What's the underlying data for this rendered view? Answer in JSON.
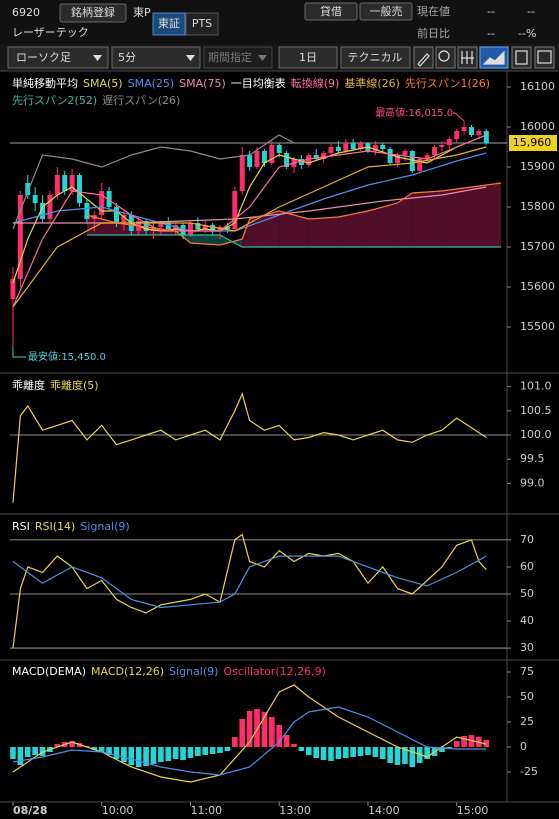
{
  "header": {
    "code": "6920",
    "watch_button": "銘柄登録",
    "market": "東P",
    "exchanges": [
      "東証",
      "PTS"
    ],
    "name": "レーザーテック",
    "buttons": [
      "貸借",
      "一般売"
    ],
    "price_label": "現在値",
    "price": "--",
    "price_extra": "--",
    "change_label": "前日比",
    "change": "--",
    "change_pct": "--%"
  },
  "toolbar": {
    "chart_style": "ローソク足",
    "interval": "5分",
    "period": "期間指定",
    "range": "1日",
    "technical": "テクニカル"
  },
  "chart_data": [
    {
      "type": "candlestick",
      "xlim": [
        -0.4,
        66.8
      ],
      "ylim": [
        15392.5,
        16130
      ],
      "yticks": [
        15500,
        15600,
        15700,
        15800,
        15900,
        16000,
        16100
      ],
      "up_color": "#ff2d6a",
      "down_color": "#23d5d5",
      "open": [
        15570,
        15620,
        15860,
        15830,
        15810,
        15770,
        15830,
        15880,
        15840,
        15880,
        15810,
        15770,
        15780,
        15840,
        15800,
        15760,
        15780,
        15740,
        15765,
        15740,
        15750,
        15760,
        15745,
        15755,
        15730,
        15760,
        15745,
        15755,
        15740,
        15750,
        15745,
        15840,
        15930,
        15900,
        15940,
        15910,
        15955,
        15935,
        15900,
        15920,
        15905,
        15930,
        15920,
        15935,
        15950,
        15940,
        15960,
        15945,
        15960,
        15940,
        15955,
        15945,
        15910,
        15930,
        15940,
        15890,
        15920,
        15930,
        15950,
        15955,
        15970,
        15990,
        16000,
        15980,
        15990
      ],
      "high": [
        15650,
        15840,
        15880,
        15850,
        15830,
        15840,
        15900,
        15890,
        15895,
        15885,
        15820,
        15790,
        15860,
        15850,
        15810,
        15790,
        15790,
        15775,
        15770,
        15760,
        15765,
        15775,
        15760,
        15760,
        15765,
        15775,
        15765,
        15760,
        15755,
        15760,
        15850,
        15950,
        15940,
        15950,
        15945,
        15965,
        15960,
        15940,
        15925,
        15930,
        15935,
        15945,
        15940,
        15960,
        15965,
        15970,
        15970,
        15965,
        15962,
        15965,
        15960,
        15950,
        15935,
        15945,
        15942,
        15925,
        15935,
        15955,
        15965,
        15975,
        15995,
        16015,
        16005,
        15995,
        15995
      ],
      "low": [
        15450,
        15600,
        15820,
        15790,
        15760,
        15760,
        15820,
        15830,
        15830,
        15800,
        15760,
        15740,
        15770,
        15790,
        15750,
        15740,
        15730,
        15730,
        15730,
        15720,
        15730,
        15740,
        15730,
        15720,
        15725,
        15740,
        15735,
        15730,
        15720,
        15735,
        15740,
        15830,
        15890,
        15895,
        15900,
        15905,
        15925,
        15895,
        15885,
        15895,
        15900,
        15915,
        15910,
        15925,
        15935,
        15935,
        15940,
        15940,
        15935,
        15930,
        15935,
        15905,
        15900,
        15915,
        15885,
        15885,
        15910,
        15920,
        15940,
        15945,
        15960,
        15980,
        15975,
        15970,
        15955
      ],
      "close": [
        15620,
        15830,
        15830,
        15810,
        15770,
        15830,
        15880,
        15840,
        15880,
        15810,
        15770,
        15780,
        15840,
        15800,
        15760,
        15780,
        15740,
        15765,
        15740,
        15750,
        15760,
        15745,
        15755,
        15730,
        15760,
        15745,
        15755,
        15740,
        15750,
        15745,
        15840,
        15930,
        15900,
        15940,
        15910,
        15955,
        15935,
        15900,
        15920,
        15905,
        15930,
        15920,
        15935,
        15950,
        15940,
        15960,
        15945,
        15960,
        15940,
        15955,
        15945,
        15910,
        15930,
        15940,
        15890,
        15920,
        15930,
        15950,
        15955,
        15970,
        15990,
        16000,
        15980,
        15990,
        15960
      ],
      "overlays": [
        {
          "label": "単純移動平均",
          "series": [
            {
              "name": "SMA(5)",
              "color": "#e8d44d",
              "x": [
                0,
                2,
                4,
                6,
                8,
                10,
                12,
                14,
                16,
                18,
                20,
                22,
                24,
                26,
                28,
                30,
                32,
                34,
                36,
                40,
                44,
                48,
                52,
                56,
                60,
                64
              ],
              "values": [
                15610,
                15720,
                15800,
                15830,
                15850,
                15820,
                15790,
                15790,
                15760,
                15745,
                15740,
                15745,
                15740,
                15745,
                15740,
                15760,
                15850,
                15910,
                15930,
                15910,
                15935,
                15950,
                15925,
                15910,
                15950,
                15980
              ]
            },
            {
              "name": "SMA(25)",
              "color": "#4f8fe8",
              "x": [
                0,
                6,
                12,
                18,
                24,
                30,
                36,
                42,
                48,
                54,
                60,
                64
              ],
              "values": [
                15760,
                15790,
                15800,
                15770,
                15740,
                15740,
                15780,
                15820,
                15855,
                15880,
                15915,
                15935
              ]
            },
            {
              "name": "SMA(75)",
              "color": "#f08cb0",
              "x": [
                0,
                16,
                30,
                40,
                50,
                58,
                64
              ],
              "values": [
                15760,
                15760,
                15770,
                15790,
                15815,
                15830,
                15850
              ]
            }
          ]
        },
        {
          "label": "一目均衡表",
          "series": [
            {
              "name": "転換線(9)",
              "color": "#ff6b9d",
              "x": [
                0,
                4,
                8,
                12,
                16,
                20,
                24,
                28,
                32,
                36,
                40,
                44,
                48,
                52,
                56,
                60,
                64
              ],
              "values": [
                15550,
                15720,
                15840,
                15830,
                15780,
                15740,
                15740,
                15740,
                15800,
                15900,
                15920,
                15930,
                15940,
                15930,
                15920,
                15950,
                15980
              ]
            },
            {
              "name": "基準線(26)",
              "color": "#e0b030",
              "x": [
                0,
                6,
                12,
                18,
                24,
                30,
                36,
                42,
                48,
                54,
                60,
                64
              ],
              "values": [
                15550,
                15700,
                15760,
                15760,
                15760,
                15740,
                15800,
                15850,
                15900,
                15910,
                15930,
                15950
              ]
            },
            {
              "name": "先行スパン1(26)",
              "color": "#ff7a30",
              "x": [
                10,
                14,
                18,
                22,
                24,
                28,
                31,
                32,
                36,
                40,
                44,
                48,
                52,
                54,
                58,
                62,
                66
              ],
              "values": [
                15780,
                15760,
                15750,
                15740,
                15710,
                15705,
                15720,
                15770,
                15790,
                15770,
                15775,
                15790,
                15810,
                15835,
                15840,
                15850,
                15860
              ]
            },
            {
              "name": "先行スパン2(52)",
              "color": "#3cb8a0",
              "x": [
                10,
                14,
                18,
                22,
                24,
                28,
                31,
                32,
                36,
                40,
                44,
                48,
                52,
                54,
                58,
                62,
                66
              ],
              "values": [
                15730,
                15730,
                15730,
                15730,
                15730,
                15730,
                15700,
                15700,
                15700,
                15700,
                15700,
                15700,
                15700,
                15700,
                15700,
                15700,
                15700
              ]
            },
            {
              "name": "遅行スパン(26)",
              "color": "#8a8a8a",
              "x": [
                0,
                4,
                8,
                12,
                16,
                20,
                24,
                28,
                32,
                36,
                38
              ],
              "values": [
                15745,
                15930,
                15920,
                15900,
                15930,
                15950,
                15940,
                15920,
                15930,
                15980,
                15960
              ]
            }
          ]
        }
      ],
      "cloud_colors": {
        "up": "#5e1030",
        "down": "#0e4a48"
      },
      "current_price": {
        "value": 15960,
        "label": "15,960"
      },
      "annotations": [
        {
          "text": "最高値:16,015.0",
          "x": 61,
          "y": 16015,
          "color": "#ff4d7a"
        },
        {
          "text": "最安値:15,450.0",
          "x": 0,
          "y": 15450,
          "color": "#4fd0e0"
        }
      ]
    },
    {
      "type": "line",
      "title": "乖離度",
      "xlim": [
        -0.4,
        66.8
      ],
      "ylim": [
        98.45,
        101.2
      ],
      "yticks": [
        {
          "value": 99,
          "label": "99.0"
        },
        99.5,
        {
          "value": 100,
          "label": "100.0"
        },
        100.5,
        {
          "value": 101,
          "label": "101.0"
        }
      ],
      "hlines": [
        100
      ],
      "series": [
        {
          "name": "乖離度(5)",
          "color": "#e8d44d",
          "x": [
            0,
            1,
            2,
            4,
            6,
            8,
            10,
            12,
            14,
            16,
            18,
            20,
            22,
            24,
            26,
            28,
            30,
            31,
            32,
            34,
            36,
            38,
            40,
            42,
            44,
            46,
            48,
            50,
            52,
            54,
            56,
            58,
            60,
            62,
            64
          ],
          "values": [
            98.6,
            100.4,
            100.6,
            100.1,
            100.2,
            100.3,
            99.9,
            100.2,
            99.8,
            99.9,
            100.0,
            100.1,
            99.9,
            100.0,
            100.1,
            99.9,
            100.5,
            100.85,
            100.3,
            100.1,
            100.2,
            99.9,
            99.95,
            100.05,
            100.0,
            99.9,
            100.0,
            100.1,
            99.9,
            99.85,
            100.0,
            100.1,
            100.35,
            100.15,
            99.95
          ]
        }
      ]
    },
    {
      "type": "line",
      "title": "RSI",
      "xlim": [
        -0.4,
        66.8
      ],
      "ylim": [
        26.7,
        78.1
      ],
      "yticks": [
        30,
        40,
        50,
        60,
        70
      ],
      "hlines": [
        70,
        50,
        30
      ],
      "series": [
        {
          "name": "RSI(14)",
          "color": "#e8d44d",
          "x": [
            0,
            1,
            2,
            4,
            6,
            8,
            10,
            12,
            14,
            16,
            18,
            20,
            22,
            24,
            26,
            28,
            30,
            31,
            32,
            34,
            36,
            38,
            40,
            42,
            44,
            46,
            48,
            50,
            52,
            54,
            56,
            58,
            60,
            62,
            63,
            64
          ],
          "values": [
            30,
            52,
            60,
            58,
            64,
            60,
            52,
            55,
            48,
            45,
            43,
            46,
            47,
            48,
            50,
            47,
            70,
            72,
            62,
            60,
            66,
            62,
            65,
            64,
            65,
            62,
            54,
            60,
            52,
            50,
            55,
            60,
            68,
            70,
            62,
            59
          ]
        },
        {
          "name": "Signal(9)",
          "color": "#4f8fe8",
          "x": [
            0,
            4,
            8,
            12,
            16,
            20,
            24,
            28,
            30,
            32,
            36,
            40,
            44,
            48,
            52,
            56,
            60,
            64
          ],
          "values": [
            62,
            54,
            60,
            56,
            48,
            45,
            46,
            47,
            50,
            60,
            64,
            64,
            64,
            60,
            56,
            53,
            58,
            64
          ]
        }
      ]
    },
    {
      "type": "line",
      "title": "MACD(DEMA)",
      "xlim": [
        -0.4,
        66.8
      ],
      "ylim": [
        -53,
        84
      ],
      "yticks": [
        -25,
        0,
        25,
        50,
        75
      ],
      "xticks": [
        {
          "value": 0,
          "label": "08/28"
        },
        {
          "value": 12,
          "label": "10:00"
        },
        {
          "value": 24,
          "label": "11:00"
        },
        {
          "value": 36,
          "label": "13:00"
        },
        {
          "value": 48,
          "label": "14:00"
        },
        {
          "value": 60,
          "label": "15:00"
        }
      ],
      "series": [
        {
          "name": "MACD(12,26)",
          "color": "#e8d44d",
          "x": [
            0,
            4,
            8,
            12,
            16,
            20,
            24,
            28,
            32,
            34,
            36,
            38,
            40,
            44,
            48,
            52,
            56,
            60,
            64
          ],
          "values": [
            -25,
            -5,
            5,
            -5,
            -20,
            -30,
            -35,
            -28,
            5,
            30,
            55,
            62,
            50,
            30,
            15,
            0,
            -10,
            10,
            3
          ]
        },
        {
          "name": "Signal(9)",
          "color": "#4f8fe8",
          "x": [
            0,
            4,
            8,
            12,
            16,
            20,
            24,
            28,
            32,
            36,
            38,
            40,
            44,
            48,
            52,
            56,
            60,
            64
          ],
          "values": [
            -15,
            -10,
            -3,
            -5,
            -12,
            -20,
            -25,
            -28,
            -20,
            5,
            25,
            35,
            40,
            30,
            15,
            0,
            -2,
            -2
          ]
        },
        {
          "name": "Oscillator(12,26,9)",
          "color": "#ff2d6a",
          "negative_color": "#23d5d5",
          "style": "bar",
          "values": [
            -12,
            -18,
            -10,
            -8,
            -9,
            -5,
            3,
            5,
            6,
            4,
            1,
            -3,
            -5,
            -8,
            -12,
            -15,
            -18,
            -20,
            -19,
            -17,
            -15,
            -14,
            -12,
            -13,
            -11,
            -9,
            -8,
            -7,
            -6,
            -4,
            10,
            28,
            36,
            38,
            35,
            30,
            22,
            12,
            3,
            -4,
            -8,
            -11,
            -13,
            -14,
            -12,
            -11,
            -10,
            -9,
            -8,
            -10,
            -12,
            -16,
            -18,
            -17,
            -20,
            -16,
            -12,
            -9,
            -5,
            -1,
            6,
            11,
            12,
            10,
            7
          ]
        }
      ]
    }
  ]
}
